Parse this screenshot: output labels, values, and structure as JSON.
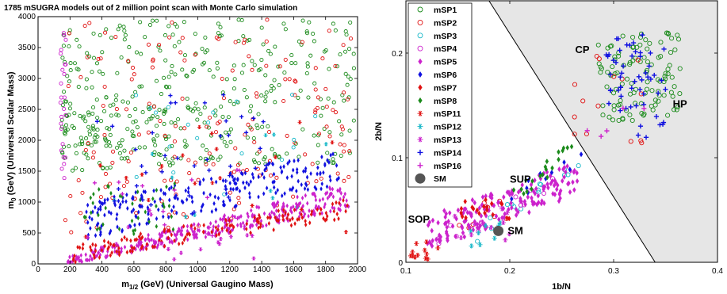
{
  "chart_data": [
    {
      "type": "scatter",
      "title": "1785 mSUGRA models out of 2 million point scan with Monte Carlo simulation",
      "xlabel_main": "m",
      "xlabel_sub": "1/2",
      "xlabel_rest": " (GeV) (Universal Gaugino Mass)",
      "ylabel_main": "m",
      "ylabel_sub": "0",
      "ylabel_rest": " (GeV) (Universal Scalar Mass)",
      "xlim": [
        0,
        2000
      ],
      "ylim": [
        0,
        4000
      ],
      "xticks": [
        "0",
        "200",
        "400",
        "600",
        "800",
        "1000",
        "1200",
        "1400",
        "1600",
        "1800",
        "2000"
      ],
      "yticks": [
        "0",
        "500",
        "1000",
        "1500",
        "2000",
        "2500",
        "3000",
        "3500",
        "4000"
      ],
      "grid": false,
      "series": [
        {
          "ref": "mSP1",
          "color": "#1a8a1a",
          "marker": "circle-open",
          "region": "m0 1500-4000 across m1/2 150-2000, denser at low m1/2",
          "count": 420
        },
        {
          "ref": "mSP2",
          "color": "#e01010",
          "marker": "circle-open",
          "region": "scattered m0 500-4000",
          "count": 180
        },
        {
          "ref": "mSP3",
          "color": "#18b8c8",
          "marker": "circle-open",
          "region": "sparse mid band",
          "count": 20
        },
        {
          "ref": "mSP4",
          "color": "#cc22cc",
          "marker": "circle-open",
          "region": "vertical strip at m1/2 ~150",
          "count": 25
        },
        {
          "ref": "mSP5",
          "color": "#cc22cc",
          "marker": "diamond-filled",
          "region": "lower band m0 0-1300 rising with m1/2",
          "count": 330
        },
        {
          "ref": "mSP6",
          "color": "#1010e0",
          "marker": "diamond-filled",
          "region": "band m0 700-1700",
          "count": 230
        },
        {
          "ref": "mSP7",
          "color": "#e01010",
          "marker": "diamond-filled",
          "region": "band m0 100-900",
          "count": 150
        },
        {
          "ref": "mSP8",
          "color": "#1a8a1a",
          "marker": "diamond-filled",
          "region": "low m1/2 m0 500-1300",
          "count": 40
        },
        {
          "ref": "mSP11",
          "color": "#e01010",
          "marker": "star",
          "region": "sparse",
          "count": 20
        },
        {
          "ref": "mSP12",
          "color": "#18b8c8",
          "marker": "star",
          "region": "sparse",
          "count": 10
        },
        {
          "ref": "mSP13",
          "color": "#cc22cc",
          "marker": "star",
          "region": "sparse",
          "count": 20
        },
        {
          "ref": "mSP14",
          "color": "#1010e0",
          "marker": "plus",
          "region": "sparse m0 800-2800",
          "count": 40
        },
        {
          "ref": "mSP16",
          "color": "#cc22cc",
          "marker": "plus",
          "region": "sparse",
          "count": 15
        }
      ]
    },
    {
      "type": "scatter",
      "xlabel": "1b/N",
      "ylabel": "2b/N",
      "xlim": [
        0.1,
        0.4
      ],
      "ylim": [
        0,
        0.25
      ],
      "xticks": [
        "0.1",
        "0.2",
        "0.3",
        "0.4"
      ],
      "yticks": [
        "0",
        "0.1",
        "0.2"
      ],
      "grid": false,
      "legend_position": "top-left",
      "shaded_region": {
        "color": "#e6e6e6",
        "boundary": [
          [
            0.18,
            0.25
          ],
          [
            0.34,
            0.0
          ]
        ]
      },
      "annotations": [
        {
          "text": "CP",
          "x": 0.263,
          "y": 0.2
        },
        {
          "text": "HP",
          "x": 0.357,
          "y": 0.148
        },
        {
          "text": "SUP",
          "x": 0.2,
          "y": 0.076
        },
        {
          "text": "SOP",
          "x": 0.102,
          "y": 0.038
        },
        {
          "text": "SM",
          "x": 0.198,
          "y": 0.027
        }
      ],
      "series": [
        {
          "name": "mSP1",
          "color": "#1a8a1a",
          "marker": "circle-open",
          "region": "cluster x 0.28-0.36, y 0.13-0.22",
          "count": 110
        },
        {
          "name": "mSP2",
          "color": "#e01010",
          "marker": "circle-open",
          "region": "x 0.15-0.33",
          "count": 25
        },
        {
          "name": "mSP3",
          "color": "#18b8c8",
          "marker": "circle-open",
          "region": "x 0.16-0.27",
          "count": 15
        },
        {
          "name": "mSP4",
          "color": "#cc22cc",
          "marker": "circle-open",
          "region": "x 0.13-0.25",
          "count": 15
        },
        {
          "name": "mSP5",
          "color": "#cc22cc",
          "marker": "diamond-filled",
          "region": "band x 0.12-0.26, y 0.02-0.08",
          "count": 170
        },
        {
          "name": "mSP6",
          "color": "#1010e0",
          "marker": "diamond-filled",
          "region": "x 0.2-0.27",
          "count": 10
        },
        {
          "name": "mSP7",
          "color": "#e01010",
          "marker": "diamond-filled",
          "region": "x 0.15-0.2",
          "count": 20
        },
        {
          "name": "mSP8",
          "color": "#1a8a1a",
          "marker": "diamond-filled",
          "region": "x 0.2-0.26, y 0.06-0.11",
          "count": 20
        },
        {
          "name": "mSP11",
          "color": "#e01010",
          "marker": "star",
          "region": "x 0.1-0.14, y 0-0.02",
          "count": 12
        },
        {
          "name": "mSP12",
          "color": "#18b8c8",
          "marker": "star",
          "region": "x 0.15-0.2",
          "count": 8
        },
        {
          "name": "mSP13",
          "color": "#cc22cc",
          "marker": "star",
          "region": "x 0.13-0.2",
          "count": 10
        },
        {
          "name": "mSP14",
          "color": "#1010e0",
          "marker": "plus",
          "region": "cluster x 0.29-0.35, y 0.11-0.22",
          "count": 55
        },
        {
          "name": "mSP16",
          "color": "#cc22cc",
          "marker": "plus",
          "region": "x 0.27-0.33",
          "count": 5
        },
        {
          "name": "SM",
          "color": "#555555",
          "marker": "big-dot",
          "points": [
            [
              0.189,
              0.03
            ]
          ]
        }
      ]
    }
  ]
}
